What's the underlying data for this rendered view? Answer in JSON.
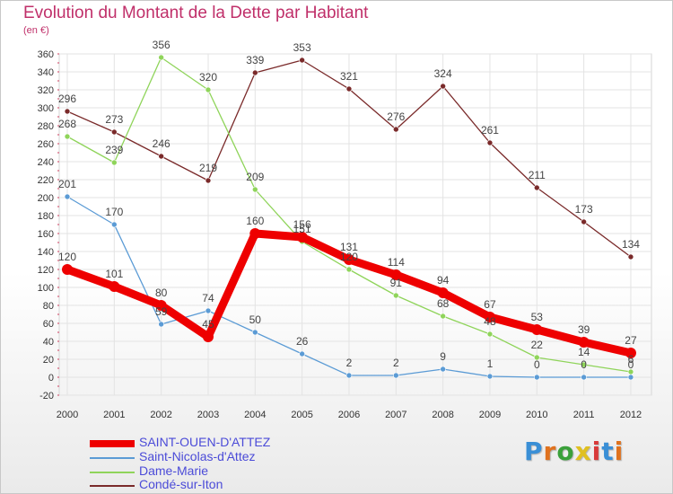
{
  "title": "Evolution du Montant de la Dette par Habitant",
  "subtitle": "(en €)",
  "logo": {
    "text": "Proxiti",
    "colors": [
      "#3a8fd6",
      "#e0721e",
      "#3aa03a",
      "#e0c020",
      "#d83a3a",
      "#3a8fd6",
      "#e0721e"
    ]
  },
  "chart_data": {
    "type": "line",
    "title": "Evolution du Montant de la Dette par Habitant",
    "ylabel": "(en €)",
    "xlabel": "",
    "x": [
      "2000",
      "2001",
      "2002",
      "2003",
      "2004",
      "2005",
      "2006",
      "2007",
      "2008",
      "2009",
      "2010",
      "2011",
      "2012"
    ],
    "ylim": [
      -20,
      360
    ],
    "yticks": [
      -20,
      0,
      20,
      40,
      60,
      80,
      100,
      120,
      140,
      160,
      180,
      200,
      220,
      240,
      260,
      280,
      300,
      320,
      340,
      360
    ],
    "grid": true,
    "legend": "bottom-left",
    "series": [
      {
        "name": "SAINT-OUEN-D'ATTEZ",
        "color": "#ee0000",
        "values": [
          120,
          101,
          80,
          45,
          160,
          156,
          131,
          114,
          94,
          67,
          53,
          39,
          27
        ]
      },
      {
        "name": "Saint-Nicolas-d'Attez",
        "color": "#5b9bd5",
        "values": [
          201,
          170,
          59,
          74,
          50,
          26,
          2,
          2,
          9,
          1,
          0,
          0,
          0
        ]
      },
      {
        "name": "Dame-Marie",
        "color": "#8fd45a",
        "values": [
          268,
          239,
          356,
          320,
          209,
          151,
          120,
          91,
          68,
          48,
          22,
          14,
          6
        ]
      },
      {
        "name": "Condé-sur-Iton",
        "color": "#7a2a2a",
        "values": [
          296,
          273,
          246,
          219,
          339,
          353,
          321,
          276,
          324,
          261,
          211,
          173,
          134
        ]
      }
    ]
  }
}
